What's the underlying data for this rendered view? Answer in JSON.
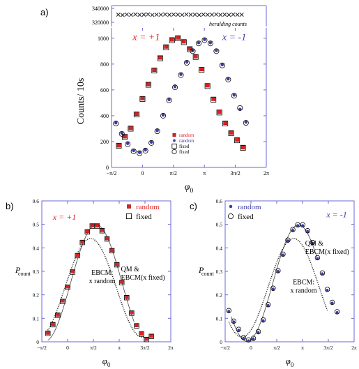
{
  "panels": {
    "a": "a)",
    "b": "b)",
    "c": "c)"
  },
  "chart_data": [
    {
      "id": "a-top",
      "type": "scatter",
      "annotation": "heralding counts",
      "ylim": [
        318000,
        342000
      ],
      "yticks": [
        {
          "v": 320000,
          "label": "320000"
        },
        {
          "v": 340000,
          "label": "340000"
        }
      ],
      "xlim": [
        -1.7,
        6.3
      ],
      "series": [
        {
          "marker": "x",
          "color": "#222222",
          "x": [
            -1.35,
            -1.13,
            -0.91,
            -0.69,
            -0.47,
            -0.25,
            -0.03,
            0.19,
            0.41,
            0.63,
            0.85,
            1.07,
            1.29,
            1.51,
            1.73,
            1.95,
            2.17,
            2.39,
            2.61,
            2.83,
            3.05,
            3.27,
            3.49,
            3.71,
            3.93,
            4.15,
            4.37,
            4.59,
            4.81,
            5.03
          ],
          "y": [
            331000,
            330500,
            331200,
            330800,
            331300,
            330700,
            331000,
            331400,
            330600,
            331100,
            330900,
            331300,
            330800,
            331200,
            331000,
            330700,
            331300,
            330900,
            331100,
            330600,
            331200,
            330900,
            331000,
            331300,
            330800,
            331100,
            330700,
            331200,
            330900,
            331000
          ]
        }
      ]
    },
    {
      "id": "a",
      "type": "scatter",
      "xlabel": "φ0",
      "ylabel": "Counts/ 10s",
      "xlim": [
        -1.5708,
        6.2832
      ],
      "ylim": [
        0,
        1080
      ],
      "xticks": [
        {
          "v": -1.5708,
          "label": "-π/2"
        },
        {
          "v": 0,
          "label": "0"
        },
        {
          "v": 1.5708,
          "label": "π/2"
        },
        {
          "v": 3.1416,
          "label": "π"
        },
        {
          "v": 4.7124,
          "label": "3π/2"
        },
        {
          "v": 6.2832,
          "label": "2π"
        }
      ],
      "yticks": [
        {
          "v": 0,
          "label": "0"
        },
        {
          "v": 200,
          "label": "200"
        },
        {
          "v": 400,
          "label": "400"
        },
        {
          "v": 600,
          "label": "600"
        },
        {
          "v": 800,
          "label": "800"
        },
        {
          "v": 1000,
          "label": "1000"
        }
      ],
      "texts": [
        {
          "text": "x = +1",
          "color": "#e02020",
          "x": -0.5,
          "y": 985
        },
        {
          "text": "x = -1",
          "color": "#3a3aa8",
          "x": 4.05,
          "y": 985
        }
      ],
      "legend": [
        "random",
        "random",
        "fixed",
        "fixed"
      ],
      "legend_colors": [
        "#e02020",
        "#3a3aa8",
        "#000000",
        "#000000"
      ],
      "series": [
        {
          "marker": "square-filled",
          "color": "#e02020",
          "x": [
            -1.2,
            -0.9,
            -0.6,
            -0.3,
            0.0,
            0.3,
            0.6,
            0.9,
            1.2,
            1.5,
            1.8,
            2.1,
            2.4,
            2.7,
            3.0,
            3.3,
            3.6,
            3.9,
            4.2,
            4.5,
            4.8,
            5.1
          ],
          "y": [
            170,
            240,
            305,
            415,
            535,
            645,
            755,
            850,
            935,
            990,
            1005,
            975,
            920,
            860,
            760,
            635,
            530,
            430,
            345,
            270,
            215,
            155
          ]
        },
        {
          "marker": "circle-filled",
          "color": "#3a3aa8",
          "x": [
            -1.35,
            -1.05,
            -0.75,
            -0.45,
            -0.15,
            0.15,
            0.45,
            0.75,
            1.05,
            1.35,
            1.65,
            1.95,
            2.25,
            2.55,
            2.85,
            3.15,
            3.45,
            3.75,
            4.05,
            4.35,
            4.65,
            4.95,
            5.25
          ],
          "y": [
            345,
            265,
            185,
            130,
            115,
            135,
            195,
            285,
            405,
            525,
            625,
            720,
            815,
            905,
            965,
            990,
            965,
            905,
            795,
            685,
            560,
            450,
            350
          ]
        },
        {
          "marker": "square-open",
          "color": "#000000",
          "x": [
            -1.2,
            -0.9,
            -0.6,
            -0.3,
            0.0,
            0.3,
            0.6,
            0.9,
            1.2,
            1.5,
            1.8,
            2.1,
            2.4,
            2.7,
            3.0,
            3.3,
            3.6,
            3.9,
            4.2,
            4.5,
            4.8,
            5.1
          ],
          "y": [
            168,
            236,
            300,
            410,
            530,
            640,
            750,
            845,
            930,
            985,
            1000,
            970,
            915,
            855,
            755,
            630,
            525,
            425,
            340,
            265,
            210,
            152
          ]
        },
        {
          "marker": "circle-open",
          "color": "#000000",
          "x": [
            -1.35,
            -1.05,
            -0.75,
            -0.45,
            -0.15,
            0.15,
            0.45,
            0.75,
            1.05,
            1.35,
            1.65,
            1.95,
            2.25,
            2.55,
            2.85,
            3.15,
            3.45,
            3.75,
            4.05,
            4.35,
            4.65,
            4.95,
            5.25
          ],
          "y": [
            340,
            260,
            180,
            125,
            110,
            130,
            190,
            280,
            400,
            520,
            620,
            715,
            810,
            900,
            960,
            985,
            960,
            900,
            790,
            680,
            555,
            460,
            345
          ]
        }
      ]
    },
    {
      "id": "b",
      "type": "scatter",
      "xlabel": "φ0",
      "ylabel": "Pcount",
      "xlim": [
        -1.5708,
        6.2832
      ],
      "ylim": [
        0,
        0.6
      ],
      "xticks": [
        {
          "v": -1.5708,
          "label": "-π/2"
        },
        {
          "v": 0,
          "label": "0"
        },
        {
          "v": 1.5708,
          "label": "π/2"
        },
        {
          "v": 3.1416,
          "label": "π"
        },
        {
          "v": 4.7124,
          "label": "3π/2"
        },
        {
          "v": 6.2832,
          "label": "2π"
        }
      ],
      "yticks": [
        {
          "v": 0,
          "label": "0"
        },
        {
          "v": 0.1,
          "label": "0.1"
        },
        {
          "v": 0.2,
          "label": "0.2"
        },
        {
          "v": 0.3,
          "label": "0.3"
        },
        {
          "v": 0.4,
          "label": "0.4"
        },
        {
          "v": 0.5,
          "label": "0.5"
        },
        {
          "v": 0.6,
          "label": "0.6"
        }
      ],
      "texts": [
        {
          "text": "x = +1",
          "color": "#e02020",
          "x": -0.9,
          "y": 0.52
        },
        {
          "text": "QM &",
          "color": "#000000",
          "x": 3.25,
          "y": 0.3
        },
        {
          "text": "EBCM(x fixed)",
          "color": "#000000",
          "x": 3.25,
          "y": 0.265
        },
        {
          "text": "EBCM:",
          "color": "#000000",
          "x": 1.45,
          "y": 0.285
        },
        {
          "text": "x random",
          "color": "#000000",
          "x": 1.3,
          "y": 0.25
        }
      ],
      "legend": [
        "random",
        "fixed"
      ],
      "legend_colors": [
        "#e02020",
        "#000000"
      ],
      "series": [
        {
          "marker": "square-filled",
          "color": "#e02020",
          "x": [
            -1.2,
            -0.9,
            -0.6,
            -0.3,
            0.0,
            0.3,
            0.6,
            0.9,
            1.2,
            1.5,
            1.8,
            2.1,
            2.4,
            2.7,
            3.0,
            3.3,
            3.6,
            3.9,
            4.2,
            4.5,
            4.8,
            5.1
          ],
          "y": [
            0.038,
            0.075,
            0.115,
            0.175,
            0.235,
            0.3,
            0.37,
            0.425,
            0.47,
            0.495,
            0.495,
            0.475,
            0.44,
            0.39,
            0.33,
            0.255,
            0.19,
            0.125,
            0.07,
            0.035,
            0.012,
            0.025
          ]
        },
        {
          "marker": "square-open",
          "color": "#000000",
          "x": [
            -1.2,
            -0.9,
            -0.6,
            -0.3,
            0.0,
            0.3,
            0.6,
            0.9,
            1.2,
            1.5,
            1.8,
            2.1,
            2.4,
            2.7,
            3.0,
            3.3,
            3.6,
            3.9,
            4.2,
            4.5,
            4.8,
            5.1
          ],
          "y": [
            0.036,
            0.073,
            0.113,
            0.172,
            0.232,
            0.297,
            0.367,
            0.423,
            0.468,
            0.493,
            0.493,
            0.473,
            0.438,
            0.388,
            0.328,
            0.252,
            0.188,
            0.122,
            0.068,
            0.033,
            0.01,
            0.023
          ]
        }
      ]
    },
    {
      "id": "c",
      "type": "scatter",
      "xlabel": "φ0",
      "ylabel": "Pcount",
      "xlim": [
        -1.5708,
        6.2832
      ],
      "ylim": [
        0,
        0.6
      ],
      "xticks": [
        {
          "v": -1.5708,
          "label": "-π/2"
        },
        {
          "v": 0,
          "label": "0"
        },
        {
          "v": 1.5708,
          "label": "π/2"
        },
        {
          "v": 3.1416,
          "label": "π"
        },
        {
          "v": 4.7124,
          "label": "3π/2"
        },
        {
          "v": 6.2832,
          "label": "2π"
        }
      ],
      "yticks": [
        {
          "v": 0,
          "label": "0"
        },
        {
          "v": 0.1,
          "label": "0.1"
        },
        {
          "v": 0.2,
          "label": "0.2"
        },
        {
          "v": 0.3,
          "label": "0.3"
        },
        {
          "v": 0.4,
          "label": "0.4"
        },
        {
          "v": 0.5,
          "label": "0.5"
        },
        {
          "v": 0.6,
          "label": "0.6"
        }
      ],
      "texts": [
        {
          "text": "x = -1",
          "color": "#3a3aa8",
          "x": 4.6,
          "y": 0.53
        },
        {
          "text": "QM &",
          "color": "#000000",
          "x": 3.3,
          "y": 0.41
        },
        {
          "text": "EBCM(x fixed)",
          "color": "#000000",
          "x": 3.3,
          "y": 0.375
        },
        {
          "text": "EBCM:",
          "color": "#000000",
          "x": 2.55,
          "y": 0.245
        },
        {
          "text": "x random",
          "color": "#000000",
          "x": 2.4,
          "y": 0.21
        }
      ],
      "legend": [
        "random",
        "fixed"
      ],
      "legend_colors": [
        "#3a3aa8",
        "#000000"
      ],
      "series": [
        {
          "marker": "circle-filled",
          "color": "#3a3aa8",
          "x": [
            -1.35,
            -1.05,
            -0.75,
            -0.45,
            -0.15,
            0.15,
            0.45,
            0.75,
            1.05,
            1.35,
            1.65,
            1.95,
            2.25,
            2.55,
            2.85,
            3.15,
            3.45,
            3.75,
            4.05,
            4.35,
            4.65,
            4.95,
            5.25
          ],
          "y": [
            0.13,
            0.085,
            0.05,
            0.015,
            0.005,
            0.012,
            0.04,
            0.09,
            0.155,
            0.225,
            0.3,
            0.37,
            0.43,
            0.475,
            0.495,
            0.495,
            0.47,
            0.42,
            0.355,
            0.29,
            0.22,
            0.165,
            0.125
          ]
        },
        {
          "marker": "circle-open",
          "color": "#000000",
          "x": [
            -1.35,
            -1.05,
            -0.75,
            -0.45,
            -0.15,
            0.15,
            0.45,
            0.75,
            1.05,
            1.35,
            1.65,
            1.95,
            2.25,
            2.55,
            2.85,
            3.15,
            3.45,
            3.75,
            4.05,
            4.35,
            4.65,
            4.95,
            5.25
          ],
          "y": [
            0.133,
            0.088,
            0.053,
            0.018,
            0.008,
            0.015,
            0.043,
            0.093,
            0.158,
            0.228,
            0.303,
            0.373,
            0.433,
            0.478,
            0.498,
            0.498,
            0.473,
            0.423,
            0.358,
            0.293,
            0.223,
            0.168,
            0.128
          ]
        }
      ]
    }
  ]
}
